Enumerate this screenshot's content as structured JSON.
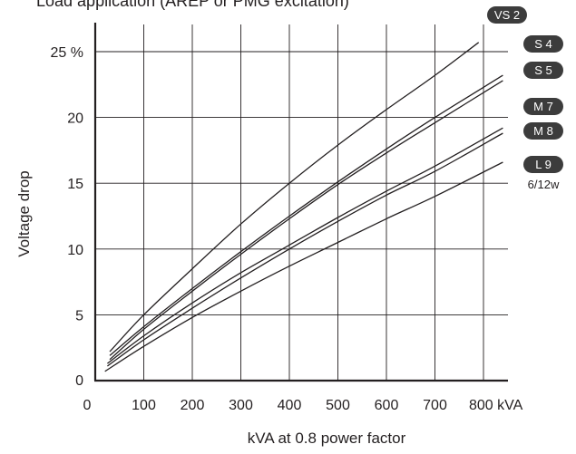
{
  "chart_data": {
    "type": "line",
    "title": "Load application (AREP or PMG excitation)",
    "xlabel": "kVA at 0.8 power factor",
    "ylabel": "Voltage drop",
    "x_ticks": [
      "0",
      "100",
      "200",
      "300",
      "400",
      "500",
      "600",
      "700",
      "800 kVA"
    ],
    "y_ticks": [
      "0",
      "5",
      "10",
      "15",
      "20",
      "25 %"
    ],
    "xlim": [
      0,
      850
    ],
    "ylim": [
      0,
      27
    ],
    "grid": true,
    "series": [
      {
        "name": "VS 2",
        "color": "#231f20",
        "x": [
          30,
          100,
          200,
          300,
          400,
          500,
          600,
          700,
          790
        ],
        "y": [
          2.2,
          5.0,
          8.5,
          11.9,
          15.0,
          17.9,
          20.6,
          23.2,
          25.7
        ]
      },
      {
        "name": "S 4",
        "color": "#231f20",
        "x": [
          30,
          100,
          200,
          300,
          400,
          500,
          600,
          700,
          840
        ],
        "y": [
          1.9,
          4.1,
          7.0,
          9.8,
          12.5,
          15.1,
          17.6,
          20.0,
          23.2
        ]
      },
      {
        "name": "S 5",
        "color": "#231f20",
        "x": [
          30,
          100,
          200,
          300,
          400,
          500,
          600,
          700,
          840
        ],
        "y": [
          1.6,
          3.9,
          6.8,
          9.6,
          12.3,
          14.9,
          17.3,
          19.6,
          22.8
        ]
      },
      {
        "name": "M 7",
        "color": "#231f20",
        "x": [
          25,
          100,
          200,
          300,
          400,
          500,
          600,
          700,
          840
        ],
        "y": [
          1.3,
          3.4,
          5.9,
          8.2,
          10.3,
          12.4,
          14.4,
          16.3,
          19.2
        ]
      },
      {
        "name": "M 8",
        "color": "#231f20",
        "x": [
          25,
          100,
          200,
          300,
          400,
          500,
          600,
          700,
          840
        ],
        "y": [
          1.1,
          3.1,
          5.5,
          7.8,
          10.0,
          12.1,
          14.1,
          15.9,
          18.8
        ]
      },
      {
        "name": "L 9",
        "color": "#231f20",
        "x": [
          20,
          100,
          200,
          300,
          400,
          500,
          600,
          700,
          840
        ],
        "y": [
          0.7,
          2.6,
          4.8,
          6.8,
          8.7,
          10.5,
          12.3,
          14.0,
          16.6
        ]
      }
    ],
    "extra_label": "6/12w",
    "badge_color": "#3c3c3c",
    "badge_text_color": "#ffffff",
    "line_color": "#231f20"
  }
}
